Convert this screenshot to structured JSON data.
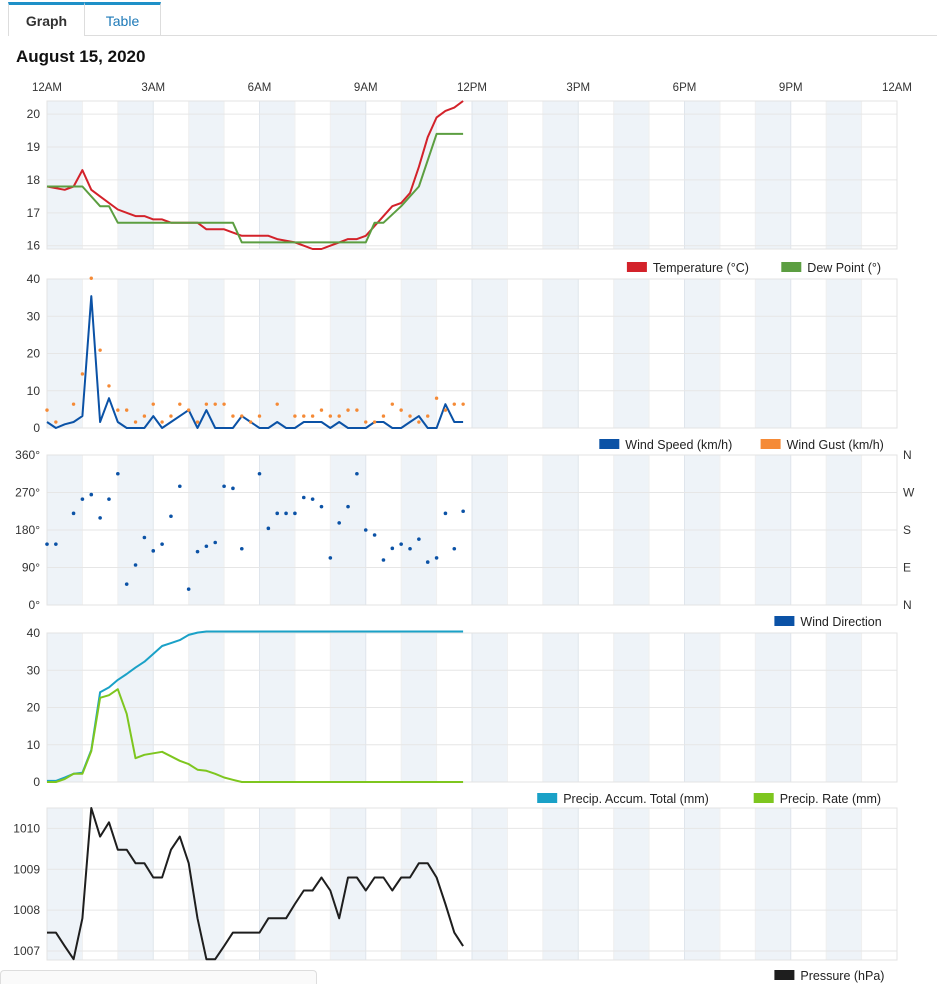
{
  "tabs": [
    {
      "label": "Graph",
      "active": true
    },
    {
      "label": "Table",
      "active": false
    }
  ],
  "date_title": "August 15, 2020",
  "colors": {
    "temperature": "#d3222a",
    "dew_point": "#5c9e41",
    "wind_speed": "#0b52a6",
    "wind_gust": "#f58a36",
    "wind_direction": "#0b52a6",
    "precip_total": "#1aa1c7",
    "precip_rate": "#7ec61f",
    "pressure": "#1e1e1e",
    "band": "#eef3f8",
    "grid": "#e6e6e6"
  },
  "chart_data": [
    {
      "type": "line",
      "x_axis_labels": [
        "12AM",
        "3AM",
        "6AM",
        "9AM",
        "12PM",
        "3PM",
        "6PM",
        "9PM",
        "12AM"
      ],
      "x_range_hours": [
        0,
        24
      ],
      "ylim": [
        15.9,
        20.4
      ],
      "y_ticks": [
        "16",
        "17",
        "18",
        "19",
        "20"
      ],
      "y_tick_values": [
        16,
        17,
        18,
        19,
        20
      ],
      "legend": [
        {
          "label": "Temperature (°C)",
          "color": "#d3222a"
        },
        {
          "label": "Dew Point (°)",
          "color": "#5c9e41"
        }
      ],
      "series": [
        {
          "name": "Temperature (°C)",
          "color": "#d3222a",
          "x": [
            0,
            0.5,
            0.75,
            1,
            1.25,
            1.5,
            2,
            2.5,
            2.75,
            3,
            3.25,
            3.5,
            4,
            4.25,
            4.5,
            5,
            5.25,
            5.5,
            6,
            6.25,
            6.5,
            7,
            7.25,
            7.5,
            7.75,
            8,
            8.25,
            8.5,
            8.75,
            9,
            9.25,
            9.5,
            9.75,
            10,
            10.25,
            10.5,
            10.75,
            11,
            11.25,
            11.5,
            11.75
          ],
          "y": [
            17.8,
            17.7,
            17.8,
            18.3,
            17.7,
            17.5,
            17.1,
            16.9,
            16.9,
            16.8,
            16.8,
            16.7,
            16.7,
            16.7,
            16.5,
            16.5,
            16.4,
            16.3,
            16.3,
            16.3,
            16.2,
            16.1,
            16.0,
            15.9,
            15.9,
            16.0,
            16.1,
            16.2,
            16.2,
            16.3,
            16.6,
            16.9,
            17.2,
            17.3,
            17.6,
            18.4,
            19.3,
            19.9,
            20.1,
            20.2,
            20.4
          ]
        },
        {
          "name": "Dew Point (°)",
          "color": "#5c9e41",
          "x": [
            0,
            1,
            1.5,
            1.75,
            2,
            2.5,
            3,
            3.5,
            4,
            4.5,
            5,
            5.25,
            5.5,
            6,
            6.5,
            7,
            7.5,
            8,
            8.5,
            9,
            9.25,
            9.5,
            10,
            10.5,
            11,
            11.25,
            11.75
          ],
          "y": [
            17.8,
            17.8,
            17.2,
            17.2,
            16.7,
            16.7,
            16.7,
            16.7,
            16.7,
            16.7,
            16.7,
            16.7,
            16.1,
            16.1,
            16.1,
            16.1,
            16.1,
            16.1,
            16.1,
            16.1,
            16.7,
            16.7,
            17.2,
            17.8,
            19.4,
            19.4,
            19.4
          ]
        }
      ]
    },
    {
      "type": "line",
      "x_range_hours": [
        0,
        24
      ],
      "ylim": [
        0,
        40
      ],
      "y_ticks": [
        "0",
        "10",
        "20",
        "30",
        "40"
      ],
      "y_tick_values": [
        0,
        10,
        20,
        30,
        40
      ],
      "legend": [
        {
          "label": "Wind Speed (km/h)",
          "color": "#0b52a6"
        },
        {
          "label": "Wind Gust (km/h)",
          "color": "#f58a36"
        }
      ],
      "series": [
        {
          "name": "Wind Speed (km/h)",
          "color": "#0b52a6",
          "style": "line",
          "x": [
            0,
            0.25,
            0.5,
            0.75,
            1,
            1.25,
            1.5,
            1.75,
            2,
            2.25,
            2.5,
            2.75,
            3,
            3.25,
            3.5,
            3.75,
            4,
            4.25,
            4.5,
            4.75,
            5,
            5.25,
            5.5,
            5.75,
            6,
            6.25,
            6.5,
            6.75,
            7,
            7.25,
            7.5,
            7.75,
            8,
            8.25,
            8.5,
            8.75,
            9,
            9.25,
            9.5,
            9.75,
            10,
            10.25,
            10.5,
            10.75,
            11,
            11.25,
            11.5,
            11.75
          ],
          "y": [
            1.6,
            0,
            1,
            1.6,
            3.2,
            35.4,
            1.6,
            8,
            1.6,
            0,
            0,
            0,
            3.2,
            0,
            1.6,
            3.2,
            4.8,
            0,
            4.8,
            0,
            0,
            0,
            3.2,
            1.6,
            0,
            0,
            1.6,
            0,
            0,
            1.6,
            1.6,
            1.6,
            0,
            1.6,
            0,
            0,
            0,
            1.6,
            1.6,
            0,
            0,
            1.6,
            3.2,
            0,
            0,
            6.4,
            1.6,
            1.6
          ]
        },
        {
          "name": "Wind Gust (km/h)",
          "color": "#f58a36",
          "style": "dots",
          "x": [
            0,
            0.25,
            0.75,
            1,
            1.25,
            1.5,
            1.75,
            2,
            2.25,
            2.5,
            2.75,
            3,
            3.25,
            3.5,
            3.75,
            4,
            4.25,
            4.5,
            4.75,
            5,
            5.25,
            5.5,
            5.75,
            6,
            6.5,
            7,
            7.25,
            7.5,
            7.75,
            8,
            8.25,
            8.5,
            8.75,
            9,
            9.25,
            9.5,
            9.75,
            10,
            10.25,
            10.5,
            10.75,
            11,
            11.25,
            11.5,
            11.75
          ],
          "y": [
            4.8,
            1.6,
            6.4,
            14.5,
            40.2,
            20.9,
            11.3,
            4.8,
            4.8,
            1.6,
            3.2,
            6.4,
            1.6,
            3.2,
            6.4,
            4.8,
            1.6,
            6.4,
            6.4,
            6.4,
            3.2,
            3.2,
            1.6,
            3.2,
            6.4,
            3.2,
            3.2,
            3.2,
            4.8,
            3.2,
            3.2,
            4.8,
            4.8,
            1.6,
            1.6,
            3.2,
            6.4,
            4.8,
            3.2,
            1.6,
            3.2,
            8,
            4.8,
            6.4,
            6.4
          ]
        }
      ]
    },
    {
      "type": "scatter",
      "x_range_hours": [
        0,
        24
      ],
      "ylim": [
        0,
        360
      ],
      "y_ticks": [
        "0°",
        "90°",
        "180°",
        "270°",
        "360°"
      ],
      "y_tick_values": [
        0,
        90,
        180,
        270,
        360
      ],
      "y_ticks_right": [
        "N",
        "E",
        "S",
        "W",
        "N"
      ],
      "legend": [
        {
          "label": "Wind Direction",
          "color": "#0b52a6"
        }
      ],
      "series": [
        {
          "name": "Wind Direction",
          "color": "#0b52a6",
          "x": [
            0,
            0.25,
            0.75,
            1,
            1.25,
            1.5,
            1.75,
            2,
            2.25,
            2.5,
            2.75,
            3,
            3.25,
            3.5,
            3.75,
            4,
            4.25,
            4.5,
            4.75,
            5,
            5.25,
            5.5,
            6,
            6.25,
            6.5,
            6.75,
            7,
            7.25,
            7.5,
            7.75,
            8,
            8.25,
            8.5,
            8.75,
            9,
            9.25,
            9.5,
            9.75,
            10,
            10.25,
            10.5,
            10.75,
            11,
            11.25,
            11.5,
            11.75
          ],
          "y": [
            146,
            146,
            220,
            254,
            265,
            209,
            254,
            315,
            50,
            96,
            162,
            130,
            146,
            213,
            285,
            38,
            128,
            141,
            150,
            285,
            280,
            135,
            315,
            184,
            220,
            220,
            220,
            258,
            254,
            236,
            113,
            197,
            236,
            315,
            180,
            168,
            108,
            136,
            146,
            135,
            158,
            103,
            113,
            220,
            135,
            225
          ]
        }
      ]
    },
    {
      "type": "line",
      "x_range_hours": [
        0,
        24
      ],
      "ylim": [
        0,
        40
      ],
      "y_ticks": [
        "0",
        "10",
        "20",
        "30",
        "40"
      ],
      "y_tick_values": [
        0,
        10,
        20,
        30,
        40
      ],
      "legend": [
        {
          "label": "Precip. Accum. Total (mm)",
          "color": "#1aa1c7"
        },
        {
          "label": "Precip. Rate (mm)",
          "color": "#7ec61f"
        }
      ],
      "series": [
        {
          "name": "Precip. Accum. Total (mm)",
          "color": "#1aa1c7",
          "x": [
            0,
            0.25,
            0.5,
            0.75,
            1,
            1.25,
            1.5,
            1.75,
            2,
            2.25,
            2.5,
            2.75,
            3,
            3.25,
            3.5,
            3.75,
            4,
            4.25,
            4.5,
            4.75,
            5,
            6,
            7,
            8,
            9,
            10,
            11,
            11.75
          ],
          "y": [
            0.3,
            0.3,
            1.2,
            2.2,
            2.5,
            8.6,
            24.1,
            25.4,
            27.4,
            29.0,
            30.7,
            32.3,
            34.4,
            36.5,
            37.3,
            38.1,
            39.5,
            40.1,
            40.4,
            40.4,
            40.4,
            40.4,
            40.4,
            40.4,
            40.4,
            40.4,
            40.4,
            40.4
          ]
        },
        {
          "name": "Precip. Rate (mm)",
          "color": "#7ec61f",
          "x": [
            0,
            0.25,
            0.5,
            0.75,
            1,
            1.25,
            1.5,
            1.75,
            2,
            2.25,
            2.5,
            2.75,
            3,
            3.25,
            3.5,
            3.75,
            4,
            4.25,
            4.5,
            4.75,
            5,
            5.25,
            5.5,
            6,
            7,
            8,
            9,
            10,
            11,
            11.75
          ],
          "y": [
            0,
            0,
            0.8,
            2.2,
            2.2,
            8.3,
            22.6,
            23.3,
            24.9,
            18.3,
            6.4,
            7.3,
            7.7,
            8.1,
            6.9,
            5.7,
            4.8,
            3.3,
            3.0,
            2.2,
            1.2,
            0.6,
            0,
            0,
            0,
            0,
            0,
            0,
            0,
            0
          ]
        }
      ]
    },
    {
      "type": "line",
      "x_range_hours": [
        0,
        24
      ],
      "ylim": [
        1006.78,
        1010.5
      ],
      "y_ticks": [
        "1007",
        "1008",
        "1009",
        "1010"
      ],
      "y_tick_values": [
        1007,
        1008,
        1009,
        1010
      ],
      "legend": [
        {
          "label": "Pressure (hPa)",
          "color": "#1e1e1e"
        }
      ],
      "series": [
        {
          "name": "Pressure (hPa)",
          "color": "#1e1e1e",
          "x": [
            0,
            0.25,
            0.5,
            0.75,
            1,
            1.25,
            1.5,
            1.75,
            2,
            2.25,
            2.5,
            2.75,
            3,
            3.25,
            3.5,
            3.75,
            4,
            4.25,
            4.5,
            4.75,
            5,
            5.25,
            5.5,
            5.75,
            6,
            6.25,
            6.5,
            6.75,
            7,
            7.25,
            7.5,
            7.75,
            8,
            8.25,
            8.5,
            8.75,
            9,
            9.25,
            9.5,
            9.75,
            10,
            10.25,
            10.5,
            10.75,
            11,
            11.25,
            11.5,
            11.75
          ],
          "y": [
            1007.45,
            1007.45,
            1007.12,
            1006.8,
            1007.8,
            1010.5,
            1009.8,
            1010.15,
            1009.48,
            1009.48,
            1009.15,
            1009.15,
            1008.8,
            1008.8,
            1009.48,
            1009.8,
            1009.15,
            1007.8,
            1006.8,
            1006.8,
            1007.12,
            1007.45,
            1007.45,
            1007.45,
            1007.45,
            1007.8,
            1007.8,
            1007.8,
            1008.15,
            1008.48,
            1008.48,
            1008.8,
            1008.48,
            1007.8,
            1008.8,
            1008.8,
            1008.48,
            1008.8,
            1008.8,
            1008.48,
            1008.8,
            1008.8,
            1009.15,
            1009.15,
            1008.8,
            1008.15,
            1007.45,
            1007.12
          ]
        }
      ]
    }
  ]
}
